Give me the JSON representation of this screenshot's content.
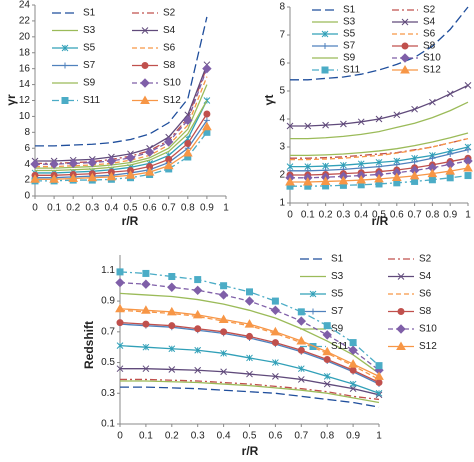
{
  "chart_data": [
    {
      "type": "line",
      "x_label": "r/R",
      "y_label": "γr",
      "x": [
        0,
        0.1,
        0.2,
        0.3,
        0.4,
        0.5,
        0.6,
        0.7,
        0.8,
        0.9
      ],
      "xlim": [
        0,
        1
      ],
      "xticks": [
        0,
        0.1,
        0.2,
        0.3,
        0.4,
        0.5,
        0.6,
        0.7,
        0.8,
        0.9,
        1
      ],
      "ylim": [
        0,
        24
      ],
      "yticks": [
        0,
        2,
        4,
        6,
        8,
        10,
        12,
        14,
        16,
        18,
        20,
        22,
        24
      ],
      "series": [
        {
          "name": "S1",
          "color": "#1f4e9c",
          "dash": "long",
          "marker": "none",
          "values": [
            6.3,
            6.3,
            6.4,
            6.5,
            6.7,
            7.1,
            7.8,
            9.2,
            12.2,
            22.5
          ]
        },
        {
          "name": "S2",
          "color": "#c0504d",
          "dash": "dashdot",
          "marker": "none",
          "values": [
            4.1,
            4.1,
            4.2,
            4.3,
            4.6,
            5.0,
            5.7,
            7.0,
            9.8,
            16.2
          ]
        },
        {
          "name": "S3",
          "color": "#9bbb59",
          "dash": "solid",
          "marker": "none",
          "values": [
            3.5,
            3.5,
            3.6,
            3.7,
            3.9,
            4.2,
            4.8,
            6.0,
            8.4,
            14.0
          ]
        },
        {
          "name": "S4",
          "color": "#604a7b",
          "dash": "solid",
          "marker": "x",
          "values": [
            4.4,
            4.4,
            4.5,
            4.6,
            4.9,
            5.3,
            6.0,
            7.4,
            10.2,
            16.5
          ]
        },
        {
          "name": "S5",
          "color": "#31a0b8",
          "dash": "solid",
          "marker": "star",
          "values": [
            2.9,
            2.9,
            3.0,
            3.1,
            3.3,
            3.6,
            4.1,
            5.1,
            7.2,
            12.0
          ]
        },
        {
          "name": "S6",
          "color": "#f79646",
          "dash": "dash",
          "marker": "none",
          "values": [
            3.7,
            3.7,
            3.8,
            3.9,
            4.1,
            4.5,
            5.1,
            6.4,
            8.9,
            15.0
          ]
        },
        {
          "name": "S7",
          "color": "#4f81bd",
          "dash": "solid",
          "marker": "plus",
          "values": [
            2.3,
            2.3,
            2.4,
            2.5,
            2.6,
            2.9,
            3.3,
            4.2,
            6.0,
            9.5
          ]
        },
        {
          "name": "S8",
          "color": "#c0504d",
          "dash": "solid",
          "marker": "circle",
          "values": [
            2.6,
            2.6,
            2.7,
            2.8,
            3.0,
            3.2,
            3.7,
            4.6,
            6.6,
            10.3
          ]
        },
        {
          "name": "S9",
          "color": "#9bbb59",
          "dash": "solid",
          "marker": "none",
          "values": [
            3.2,
            3.2,
            3.3,
            3.4,
            3.6,
            3.9,
            4.5,
            5.6,
            7.8,
            12.0
          ]
        },
        {
          "name": "S10",
          "color": "#7f5fa8",
          "dash": "dash",
          "marker": "diamond",
          "values": [
            4.0,
            4.0,
            4.1,
            4.2,
            4.4,
            4.8,
            5.5,
            6.8,
            9.5,
            16.0
          ]
        },
        {
          "name": "S11",
          "color": "#4bacc6",
          "dash": "dashdot",
          "marker": "square",
          "values": [
            1.9,
            1.9,
            2.0,
            2.0,
            2.1,
            2.3,
            2.7,
            3.4,
            4.9,
            8.0
          ]
        },
        {
          "name": "S12",
          "color": "#f79646",
          "dash": "solid",
          "marker": "triangle",
          "values": [
            2.1,
            2.1,
            2.2,
            2.3,
            2.4,
            2.6,
            3.0,
            3.8,
            5.4,
            8.7
          ]
        }
      ]
    },
    {
      "type": "line",
      "x_label": "r/R",
      "y_label": "γt",
      "x": [
        0,
        0.1,
        0.2,
        0.3,
        0.4,
        0.5,
        0.6,
        0.7,
        0.8,
        0.9,
        1
      ],
      "xlim": [
        0,
        1
      ],
      "xticks": [
        0,
        0.1,
        0.2,
        0.3,
        0.4,
        0.5,
        0.6,
        0.7,
        0.8,
        0.9,
        1
      ],
      "ylim": [
        1,
        8
      ],
      "yticks": [
        1,
        2,
        3,
        4,
        5,
        6,
        7,
        8
      ],
      "series": [
        {
          "name": "S1",
          "color": "#1f4e9c",
          "dash": "long",
          "marker": "none",
          "values": [
            5.4,
            5.4,
            5.45,
            5.5,
            5.6,
            5.75,
            5.95,
            6.2,
            6.6,
            7.2,
            8.0
          ]
        },
        {
          "name": "S2",
          "color": "#c0504d",
          "dash": "dashdot",
          "marker": "none",
          "values": [
            2.6,
            2.6,
            2.62,
            2.65,
            2.7,
            2.75,
            2.8,
            2.9,
            3.0,
            3.15,
            3.3
          ]
        },
        {
          "name": "S3",
          "color": "#9bbb59",
          "dash": "solid",
          "marker": "none",
          "values": [
            3.3,
            3.3,
            3.33,
            3.38,
            3.45,
            3.55,
            3.7,
            3.85,
            4.05,
            4.3,
            4.6
          ]
        },
        {
          "name": "S4",
          "color": "#604a7b",
          "dash": "solid",
          "marker": "x",
          "values": [
            3.75,
            3.75,
            3.78,
            3.82,
            3.9,
            4.0,
            4.15,
            4.35,
            4.6,
            4.9,
            5.2
          ]
        },
        {
          "name": "S5",
          "color": "#31a0b8",
          "dash": "solid",
          "marker": "star",
          "values": [
            2.3,
            2.3,
            2.32,
            2.35,
            2.4,
            2.45,
            2.5,
            2.6,
            2.7,
            2.85,
            3.0
          ]
        },
        {
          "name": "S6",
          "color": "#f79646",
          "dash": "dash",
          "marker": "none",
          "values": [
            2.55,
            2.55,
            2.57,
            2.6,
            2.65,
            2.7,
            2.78,
            2.88,
            3.0,
            3.15,
            3.3
          ]
        },
        {
          "name": "S7",
          "color": "#4f81bd",
          "dash": "solid",
          "marker": "plus",
          "values": [
            2.15,
            2.15,
            2.17,
            2.2,
            2.25,
            2.3,
            2.37,
            2.47,
            2.6,
            2.75,
            2.9
          ]
        },
        {
          "name": "S8",
          "color": "#c0504d",
          "dash": "solid",
          "marker": "circle",
          "values": [
            2.0,
            2.0,
            2.02,
            2.05,
            2.08,
            2.12,
            2.18,
            2.26,
            2.36,
            2.48,
            2.6
          ]
        },
        {
          "name": "S9",
          "color": "#9bbb59",
          "dash": "solid",
          "marker": "none",
          "values": [
            2.7,
            2.7,
            2.72,
            2.75,
            2.8,
            2.86,
            2.94,
            3.05,
            3.18,
            3.33,
            3.5
          ]
        },
        {
          "name": "S10",
          "color": "#7f5fa8",
          "dash": "dash",
          "marker": "diamond",
          "values": [
            1.9,
            1.9,
            1.92,
            1.95,
            1.98,
            2.02,
            2.08,
            2.16,
            2.26,
            2.38,
            2.5
          ]
        },
        {
          "name": "S11",
          "color": "#4bacc6",
          "dash": "dashdot",
          "marker": "square",
          "values": [
            1.6,
            1.6,
            1.61,
            1.63,
            1.65,
            1.68,
            1.72,
            1.77,
            1.83,
            1.9,
            1.98
          ]
        },
        {
          "name": "S12",
          "color": "#f79646",
          "dash": "solid",
          "marker": "triangle",
          "values": [
            1.75,
            1.75,
            1.77,
            1.79,
            1.82,
            1.86,
            1.91,
            1.97,
            2.05,
            2.14,
            2.25
          ]
        }
      ]
    },
    {
      "type": "line",
      "x_label": "r/R",
      "y_label": "Redshift",
      "x": [
        0,
        0.1,
        0.2,
        0.3,
        0.4,
        0.5,
        0.6,
        0.7,
        0.8,
        0.9,
        1
      ],
      "xlim": [
        0,
        1
      ],
      "xticks": [
        0,
        0.1,
        0.2,
        0.3,
        0.4,
        0.5,
        0.6,
        0.7,
        0.8,
        0.9,
        1
      ],
      "ylim": [
        0.1,
        1.2
      ],
      "yticks": [
        0.1,
        0.3,
        0.5,
        0.7,
        0.9,
        1.1
      ],
      "series": [
        {
          "name": "S1",
          "color": "#1f4e9c",
          "dash": "long",
          "marker": "none",
          "values": [
            0.34,
            0.34,
            0.335,
            0.33,
            0.32,
            0.31,
            0.3,
            0.28,
            0.26,
            0.24,
            0.21
          ]
        },
        {
          "name": "S2",
          "color": "#c0504d",
          "dash": "dashdot",
          "marker": "none",
          "values": [
            0.39,
            0.39,
            0.385,
            0.38,
            0.37,
            0.36,
            0.345,
            0.33,
            0.31,
            0.28,
            0.26
          ]
        },
        {
          "name": "S3",
          "color": "#9bbb59",
          "dash": "solid",
          "marker": "none",
          "values": [
            0.38,
            0.38,
            0.375,
            0.37,
            0.36,
            0.35,
            0.335,
            0.32,
            0.3,
            0.27,
            0.24
          ]
        },
        {
          "name": "S4",
          "color": "#604a7b",
          "dash": "solid",
          "marker": "x",
          "values": [
            0.46,
            0.46,
            0.455,
            0.45,
            0.44,
            0.425,
            0.41,
            0.39,
            0.36,
            0.33,
            0.29
          ]
        },
        {
          "name": "S5",
          "color": "#31a0b8",
          "dash": "solid",
          "marker": "star",
          "values": [
            0.61,
            0.6,
            0.59,
            0.58,
            0.56,
            0.53,
            0.5,
            0.46,
            0.41,
            0.36,
            0.3
          ]
        },
        {
          "name": "S6",
          "color": "#f79646",
          "dash": "dash",
          "marker": "none",
          "values": [
            0.84,
            0.83,
            0.82,
            0.8,
            0.77,
            0.74,
            0.69,
            0.63,
            0.56,
            0.48,
            0.39
          ]
        },
        {
          "name": "S7",
          "color": "#4f81bd",
          "dash": "solid",
          "marker": "plus",
          "values": [
            0.75,
            0.74,
            0.73,
            0.71,
            0.69,
            0.66,
            0.62,
            0.57,
            0.51,
            0.44,
            0.36
          ]
        },
        {
          "name": "S8",
          "color": "#c0504d",
          "dash": "solid",
          "marker": "circle",
          "values": [
            0.76,
            0.75,
            0.74,
            0.72,
            0.7,
            0.67,
            0.63,
            0.58,
            0.52,
            0.45,
            0.37
          ]
        },
        {
          "name": "S9",
          "color": "#9bbb59",
          "dash": "solid",
          "marker": "none",
          "values": [
            0.95,
            0.94,
            0.93,
            0.91,
            0.88,
            0.84,
            0.79,
            0.72,
            0.64,
            0.55,
            0.43
          ]
        },
        {
          "name": "S10",
          "color": "#7f5fa8",
          "dash": "dash",
          "marker": "diamond",
          "values": [
            1.02,
            1.01,
            0.99,
            0.97,
            0.94,
            0.9,
            0.84,
            0.77,
            0.68,
            0.58,
            0.45
          ]
        },
        {
          "name": "S11",
          "color": "#4bacc6",
          "dash": "dashdot",
          "marker": "square",
          "values": [
            1.09,
            1.08,
            1.06,
            1.04,
            1.0,
            0.96,
            0.9,
            0.83,
            0.74,
            0.63,
            0.48
          ]
        },
        {
          "name": "S12",
          "color": "#f79646",
          "dash": "solid",
          "marker": "triangle",
          "values": [
            0.85,
            0.84,
            0.83,
            0.81,
            0.78,
            0.75,
            0.7,
            0.64,
            0.57,
            0.49,
            0.41
          ]
        }
      ]
    }
  ]
}
